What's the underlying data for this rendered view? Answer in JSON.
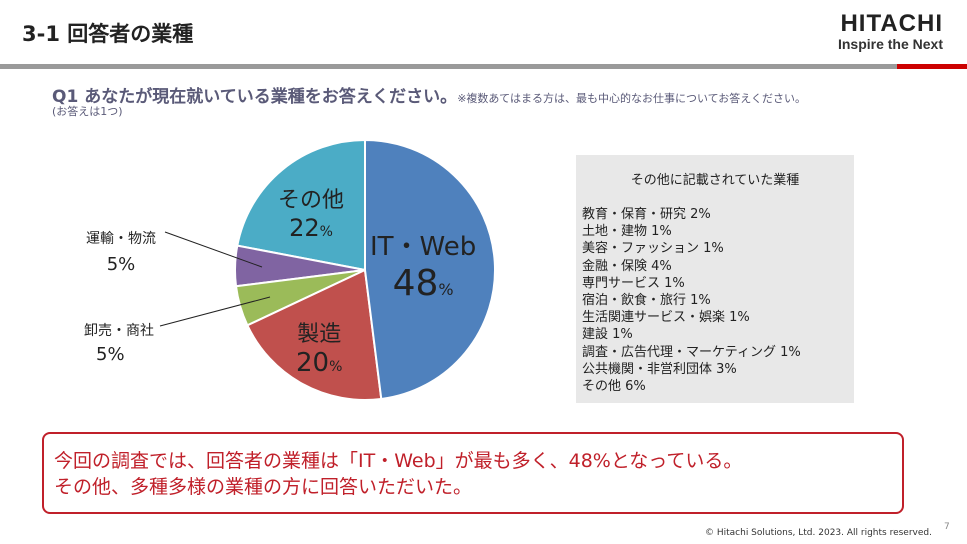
{
  "header": {
    "title": "3-1  回答者の業種",
    "logo_brand": "HITACHI",
    "logo_tagline": "Inspire the Next"
  },
  "question": {
    "label": "Q1  あなたが現在就いている業種をお答えください。",
    "note": "※複数あてはまる方は、最も中心的なお仕事についてお答えください。",
    "sub": "(お答えは1つ)"
  },
  "chart_data": {
    "type": "pie",
    "slices": [
      {
        "name": "IT・Web",
        "value": 48,
        "color": "#4f81bd"
      },
      {
        "name": "製造",
        "value": 20,
        "color": "#c0504d"
      },
      {
        "name": "卸売・商社",
        "value": 5,
        "color": "#9bbb59"
      },
      {
        "name": "運輸・物流",
        "value": 5,
        "color": "#8064a2"
      },
      {
        "name": "その他",
        "value": 22,
        "color": "#4bacc6"
      }
    ],
    "value_labels": [
      "48",
      "20",
      "5%",
      "5%",
      "22"
    ],
    "pct": "%"
  },
  "others": {
    "title": "その他に記載されていた業種",
    "items": [
      "教育・保育・研究  2%",
      "土地・建物  1%",
      "美容・ファッション  1%",
      "金融・保険  4%",
      "専門サービス  1%",
      "宿泊・飲食・旅行  1%",
      "生活関連サービス・娯楽  1%",
      "建設  1%",
      "調査・広告代理・マーケティング  1%",
      "公共機関・非営利団体  3%",
      "その他  6%"
    ]
  },
  "summary": {
    "line1": "今回の調査では、回答者の業種は「IT・Web」が最も多く、48%となっている。",
    "line2": "その他、多種多様の業種の方に回答いただいた。"
  },
  "footer": {
    "copyright": "© Hitachi Solutions, Ltd. 2023. All rights reserved.",
    "page": "7"
  }
}
